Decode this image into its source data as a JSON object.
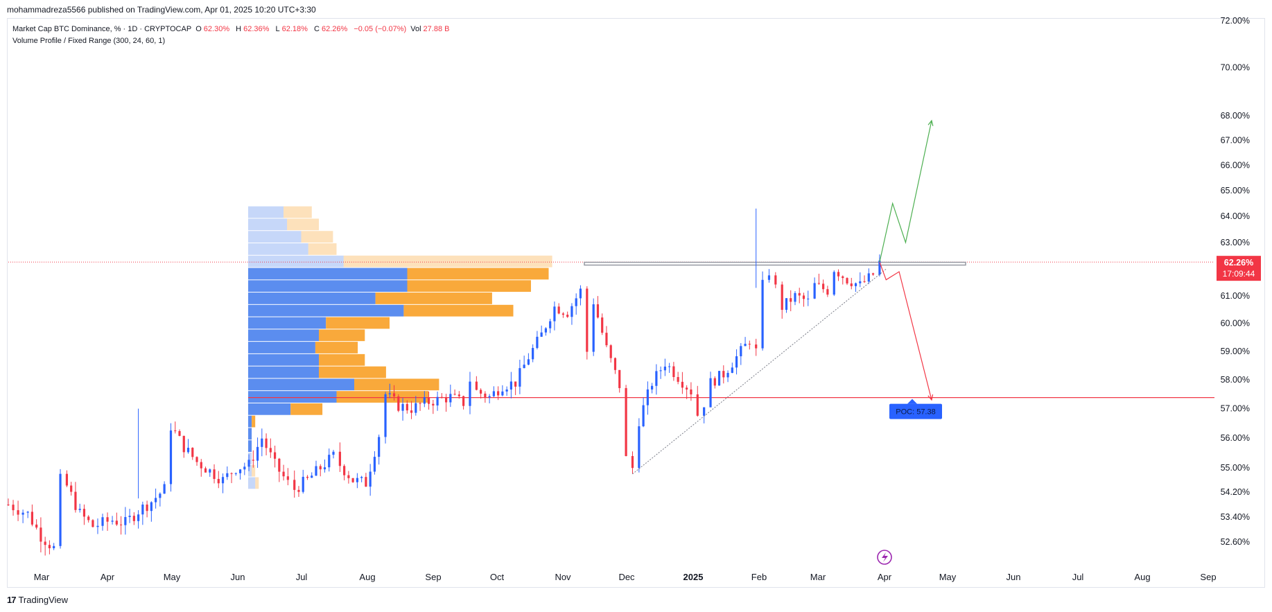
{
  "header": {
    "published": "mohammadreza5566 published on TradingView.com, Apr 01, 2025 10:20 UTC+3:30"
  },
  "legend": {
    "symbol": "Market Cap BTC Dominance, % · 1D · CRYPTOCAP",
    "o_label": "O",
    "o_value": "62.30%",
    "h_label": "H",
    "h_value": "62.36%",
    "l_label": "L",
    "l_value": "62.18%",
    "c_label": "C",
    "c_value": "62.26%",
    "change": "−0.05 (−0.07%)",
    "vol_label": "Vol",
    "vol_value": "27.88 B",
    "indicator": "Volume Profile / Fixed Range (300, 24, 60, 1)"
  },
  "footer": {
    "brand": "TradingView"
  },
  "colors": {
    "up": "#2962ff",
    "down": "#f23645",
    "poc_line": "#f23645",
    "vp_up": "#5b8def",
    "vp_down": "#f9a93b",
    "projection_up": "#4caf50",
    "projection_down": "#f23645",
    "resistance": "#9598a1",
    "poc_label_bg": "#2962ff"
  },
  "chart_data": {
    "type": "candlestick",
    "y_scale": "log",
    "y_ticks": [
      "72.00%",
      "70.00%",
      "68.00%",
      "67.00%",
      "66.00%",
      "65.00%",
      "64.00%",
      "63.00%",
      "61.00%",
      "60.00%",
      "59.00%",
      "58.00%",
      "57.00%",
      "56.00%",
      "55.00%",
      "54.20%",
      "53.40%",
      "52.60%"
    ],
    "x_ticks": [
      "Mar",
      "Apr",
      "May",
      "Jun",
      "Jul",
      "Aug",
      "Sep",
      "Oct",
      "Nov",
      "Dec",
      "2025",
      "Feb",
      "Mar",
      "Apr",
      "May",
      "Jun",
      "Jul",
      "Aug",
      "Sep"
    ],
    "close_price_label": "62.26%",
    "countdown_label": "17:09:44",
    "last_close": 62.26,
    "price_path": [
      [
        0,
        53.8
      ],
      [
        3,
        53.5
      ],
      [
        5,
        52.8
      ],
      [
        7,
        52.4
      ],
      [
        8,
        54.6
      ],
      [
        9,
        54.4
      ],
      [
        11,
        53.5
      ],
      [
        13,
        53.1
      ],
      [
        16,
        53.3
      ],
      [
        18,
        53.2
      ],
      [
        20,
        53.6
      ],
      [
        22,
        53.9
      ],
      [
        24,
        54.3
      ],
      [
        25,
        56.4
      ],
      [
        27,
        55.7
      ],
      [
        29,
        55.2
      ],
      [
        31,
        54.9
      ],
      [
        33,
        54.6
      ],
      [
        35,
        55.0
      ],
      [
        37,
        55.1
      ],
      [
        39,
        56.0
      ],
      [
        41,
        55.1
      ],
      [
        43,
        54.5
      ],
      [
        44,
        54.3
      ],
      [
        46,
        54.6
      ],
      [
        48,
        55.0
      ],
      [
        50,
        55.4
      ],
      [
        51,
        55.1
      ],
      [
        53,
        54.6
      ],
      [
        55,
        54.5
      ],
      [
        57,
        56.1
      ],
      [
        58,
        57.5
      ],
      [
        60,
        57.1
      ],
      [
        62,
        57.0
      ],
      [
        64,
        57.2
      ],
      [
        66,
        57.3
      ],
      [
        68,
        57.4
      ],
      [
        70,
        57.2
      ],
      [
        71,
        58.0
      ],
      [
        72,
        57.6
      ],
      [
        74,
        57.4
      ],
      [
        76,
        57.8
      ],
      [
        78,
        57.9
      ],
      [
        80,
        58.8
      ],
      [
        82,
        59.6
      ],
      [
        84,
        60.6
      ],
      [
        86,
        60.4
      ],
      [
        88,
        61.2
      ],
      [
        89,
        59.0
      ],
      [
        90,
        60.8
      ],
      [
        92,
        59.1
      ],
      [
        94,
        57.8
      ],
      [
        95,
        55.3
      ],
      [
        96,
        55.0
      ],
      [
        97,
        56.6
      ],
      [
        99,
        57.9
      ],
      [
        101,
        58.6
      ],
      [
        103,
        58.1
      ],
      [
        105,
        57.6
      ],
      [
        106,
        56.8
      ],
      [
        107,
        57.2
      ],
      [
        108,
        57.9
      ],
      [
        110,
        58.2
      ],
      [
        112,
        58.8
      ],
      [
        114,
        59.4
      ],
      [
        115,
        59.0
      ],
      [
        116,
        61.4
      ],
      [
        117,
        61.9
      ],
      [
        118,
        61.3
      ],
      [
        119,
        60.6
      ],
      [
        121,
        61.0
      ],
      [
        123,
        60.8
      ],
      [
        124,
        61.4
      ],
      [
        126,
        61.2
      ],
      [
        127,
        62.0
      ],
      [
        129,
        61.6
      ],
      [
        131,
        61.4
      ],
      [
        133,
        61.8
      ],
      [
        134,
        62.26
      ]
    ],
    "price_range": {
      "high": 64.4,
      "low": 54.6
    },
    "wick_spikes": [
      {
        "x": 115,
        "high": 64.3
      },
      {
        "x": 20,
        "high": 57.0
      }
    ],
    "poc": {
      "label": "POC: 57.38",
      "value": 57.38
    },
    "resistance_level": 62.2,
    "trendline": {
      "from": [
        96,
        54.8
      ],
      "to": [
        135,
        62.0
      ]
    },
    "projections": {
      "bull": [
        [
          134,
          62.26
        ],
        [
          136,
          64.5
        ],
        [
          138,
          63.0
        ],
        [
          142,
          67.8
        ]
      ],
      "bear": [
        [
          134,
          62.26
        ],
        [
          135,
          61.6
        ],
        [
          137,
          61.9
        ],
        [
          142,
          57.3
        ]
      ]
    },
    "volume_profile": {
      "start_price": 54.3,
      "end_price": 64.4,
      "rows": [
        [
          2,
          1
        ],
        [
          1,
          1
        ],
        [
          1,
          0
        ],
        [
          1,
          0
        ],
        [
          1,
          0
        ],
        [
          1,
          1
        ],
        [
          12,
          9
        ],
        [
          25,
          26
        ],
        [
          30,
          24
        ],
        [
          20,
          19
        ],
        [
          20,
          13
        ],
        [
          19,
          12
        ],
        [
          20,
          13
        ],
        [
          22,
          18
        ],
        [
          44,
          31
        ],
        [
          36,
          33
        ],
        [
          45,
          35
        ],
        [
          45,
          40
        ],
        [
          27,
          59
        ],
        [
          17,
          8
        ],
        [
          15,
          9
        ],
        [
          11,
          9
        ],
        [
          10,
          8
        ]
      ]
    }
  }
}
